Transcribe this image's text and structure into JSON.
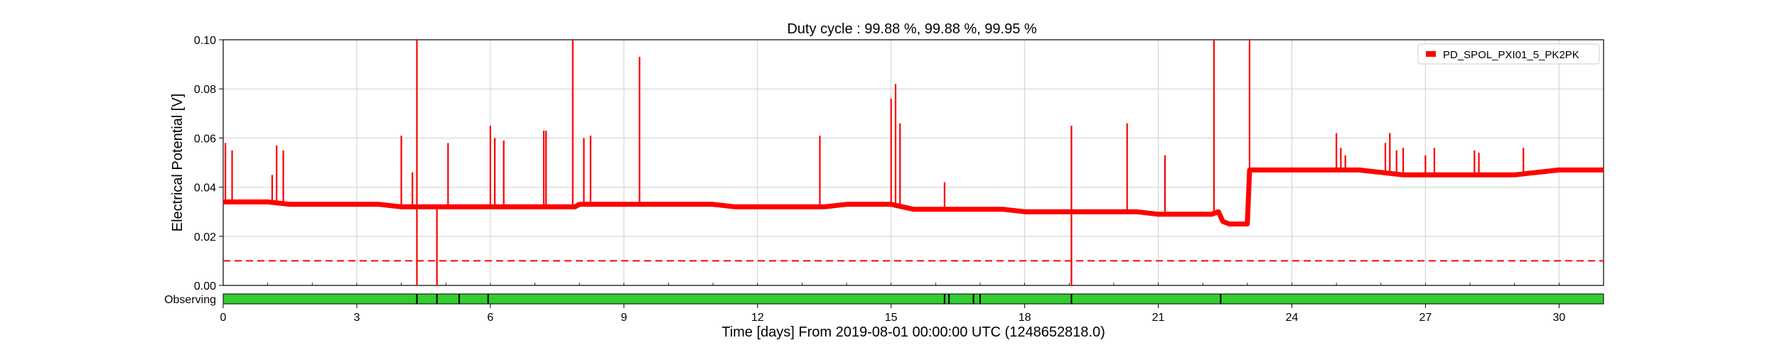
{
  "chart_data": {
    "type": "line",
    "title": "Duty cycle : 99.88 %, 99.88 %, 99.95 %",
    "xlabel": "Time [days] From 2019-08-01 00:00:00 UTC (1248652818.0)",
    "ylabel": "Electrical Potential [V]",
    "xlim": [
      0,
      31
    ],
    "ylim": [
      0,
      0.1
    ],
    "x_ticks": [
      0,
      3,
      6,
      9,
      12,
      15,
      18,
      21,
      24,
      27,
      30
    ],
    "y_ticks": [
      "0.00",
      "0.02",
      "0.04",
      "0.06",
      "0.08",
      "0.10"
    ],
    "grid": true,
    "legend_position": "top-right",
    "series": [
      {
        "name": "PD_SPOL_PXI01_5_PK2PK",
        "color": "#ff0000",
        "points": [
          [
            0.0,
            0.034
          ],
          [
            0.5,
            0.034
          ],
          [
            1.0,
            0.034
          ],
          [
            1.5,
            0.033
          ],
          [
            2.0,
            0.033
          ],
          [
            2.5,
            0.033
          ],
          [
            3.0,
            0.033
          ],
          [
            3.5,
            0.033
          ],
          [
            4.0,
            0.032
          ],
          [
            4.5,
            0.032
          ],
          [
            5.0,
            0.032
          ],
          [
            5.5,
            0.032
          ],
          [
            6.0,
            0.032
          ],
          [
            6.5,
            0.032
          ],
          [
            7.0,
            0.032
          ],
          [
            7.5,
            0.032
          ],
          [
            7.9,
            0.032
          ],
          [
            8.0,
            0.033
          ],
          [
            8.5,
            0.033
          ],
          [
            9.0,
            0.033
          ],
          [
            9.5,
            0.033
          ],
          [
            10.0,
            0.033
          ],
          [
            10.5,
            0.033
          ],
          [
            11.0,
            0.033
          ],
          [
            11.5,
            0.032
          ],
          [
            12.0,
            0.032
          ],
          [
            12.5,
            0.032
          ],
          [
            13.0,
            0.032
          ],
          [
            13.5,
            0.032
          ],
          [
            14.0,
            0.033
          ],
          [
            14.5,
            0.033
          ],
          [
            15.0,
            0.033
          ],
          [
            15.5,
            0.031
          ],
          [
            16.0,
            0.031
          ],
          [
            16.5,
            0.031
          ],
          [
            17.0,
            0.031
          ],
          [
            17.5,
            0.031
          ],
          [
            18.0,
            0.03
          ],
          [
            18.5,
            0.03
          ],
          [
            19.0,
            0.03
          ],
          [
            19.5,
            0.03
          ],
          [
            20.0,
            0.03
          ],
          [
            20.5,
            0.03
          ],
          [
            21.0,
            0.029
          ],
          [
            21.5,
            0.029
          ],
          [
            22.0,
            0.029
          ],
          [
            22.2,
            0.029
          ],
          [
            22.35,
            0.03
          ],
          [
            22.45,
            0.026
          ],
          [
            22.6,
            0.025
          ],
          [
            23.0,
            0.025
          ],
          [
            23.05,
            0.047
          ],
          [
            23.5,
            0.047
          ],
          [
            24.0,
            0.047
          ],
          [
            24.5,
            0.047
          ],
          [
            25.0,
            0.047
          ],
          [
            25.5,
            0.047
          ],
          [
            26.0,
            0.046
          ],
          [
            26.5,
            0.045
          ],
          [
            27.0,
            0.045
          ],
          [
            27.5,
            0.045
          ],
          [
            28.0,
            0.045
          ],
          [
            28.5,
            0.045
          ],
          [
            29.0,
            0.045
          ],
          [
            29.5,
            0.046
          ],
          [
            30.0,
            0.047
          ],
          [
            30.5,
            0.047
          ],
          [
            31.0,
            0.047
          ]
        ],
        "spikes": [
          [
            0.05,
            0.058
          ],
          [
            0.2,
            0.055
          ],
          [
            1.1,
            0.045
          ],
          [
            1.2,
            0.057
          ],
          [
            1.35,
            0.055
          ],
          [
            4.0,
            0.061
          ],
          [
            4.25,
            0.046
          ],
          [
            4.35,
            0.1
          ],
          [
            4.35,
            0.0
          ],
          [
            4.8,
            0.0
          ],
          [
            5.05,
            0.058
          ],
          [
            6.0,
            0.065
          ],
          [
            6.1,
            0.06
          ],
          [
            6.3,
            0.059
          ],
          [
            7.2,
            0.063
          ],
          [
            7.25,
            0.063
          ],
          [
            7.85,
            0.1
          ],
          [
            8.1,
            0.06
          ],
          [
            8.25,
            0.061
          ],
          [
            9.35,
            0.093
          ],
          [
            13.4,
            0.061
          ],
          [
            15.0,
            0.076
          ],
          [
            15.1,
            0.082
          ],
          [
            15.2,
            0.066
          ],
          [
            16.2,
            0.042
          ],
          [
            19.05,
            0.065
          ],
          [
            19.05,
            0.0
          ],
          [
            20.3,
            0.066
          ],
          [
            21.15,
            0.053
          ],
          [
            22.25,
            0.1
          ],
          [
            23.05,
            0.1
          ],
          [
            25.0,
            0.062
          ],
          [
            25.1,
            0.056
          ],
          [
            25.2,
            0.053
          ],
          [
            26.1,
            0.058
          ],
          [
            26.2,
            0.062
          ],
          [
            26.35,
            0.055
          ],
          [
            26.5,
            0.056
          ],
          [
            27.0,
            0.053
          ],
          [
            27.2,
            0.056
          ],
          [
            28.1,
            0.055
          ],
          [
            28.2,
            0.054
          ],
          [
            29.2,
            0.056
          ]
        ]
      }
    ],
    "threshold": {
      "y": 0.01,
      "style": "dashed",
      "color": "#ff0000"
    },
    "state_bar": {
      "label": "Observing",
      "color": "#33cc33",
      "gap_color": "#000000",
      "gaps": [
        4.35,
        4.8,
        5.3,
        5.95,
        16.2,
        16.3,
        16.85,
        17.0,
        19.05,
        22.4
      ]
    }
  }
}
